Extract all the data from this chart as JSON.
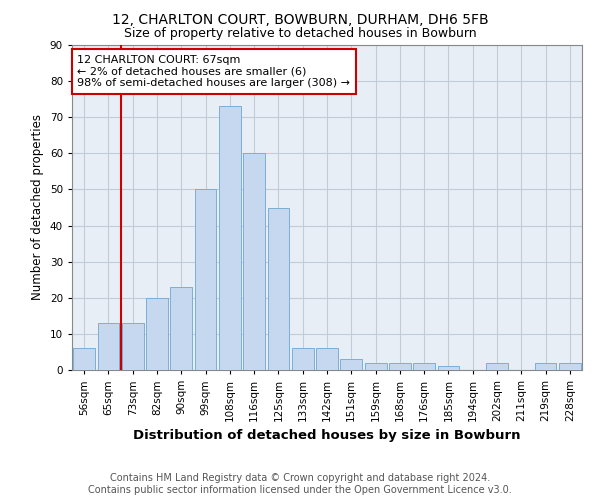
{
  "title1": "12, CHARLTON COURT, BOWBURN, DURHAM, DH6 5FB",
  "title2": "Size of property relative to detached houses in Bowburn",
  "xlabel": "Distribution of detached houses by size in Bowburn",
  "ylabel": "Number of detached properties",
  "categories": [
    "56sqm",
    "65sqm",
    "73sqm",
    "82sqm",
    "90sqm",
    "99sqm",
    "108sqm",
    "116sqm",
    "125sqm",
    "133sqm",
    "142sqm",
    "151sqm",
    "159sqm",
    "168sqm",
    "176sqm",
    "185sqm",
    "194sqm",
    "202sqm",
    "211sqm",
    "219sqm",
    "228sqm"
  ],
  "values": [
    6,
    13,
    13,
    20,
    23,
    50,
    73,
    60,
    45,
    6,
    6,
    3,
    2,
    2,
    2,
    1,
    0,
    2,
    0,
    2,
    2
  ],
  "bar_color": "#c5d8ef",
  "bar_edge_color": "#7bafd4",
  "vline_x": 1.5,
  "vline_color": "#cc0000",
  "annotation_text": "12 CHARLTON COURT: 67sqm\n← 2% of detached houses are smaller (6)\n98% of semi-detached houses are larger (308) →",
  "annotation_box_color": "#ffffff",
  "annotation_box_edge": "#cc0000",
  "ylim": [
    0,
    90
  ],
  "yticks": [
    0,
    10,
    20,
    30,
    40,
    50,
    60,
    70,
    80,
    90
  ],
  "footer": "Contains HM Land Registry data © Crown copyright and database right 2024.\nContains public sector information licensed under the Open Government Licence v3.0.",
  "bg_color": "#ffffff",
  "plot_bg_color": "#e8eef5",
  "grid_color": "#c0ccd8",
  "title1_fontsize": 10,
  "title2_fontsize": 9,
  "xlabel_fontsize": 9.5,
  "ylabel_fontsize": 8.5,
  "tick_fontsize": 7.5,
  "footer_fontsize": 7,
  "annot_fontsize": 8
}
